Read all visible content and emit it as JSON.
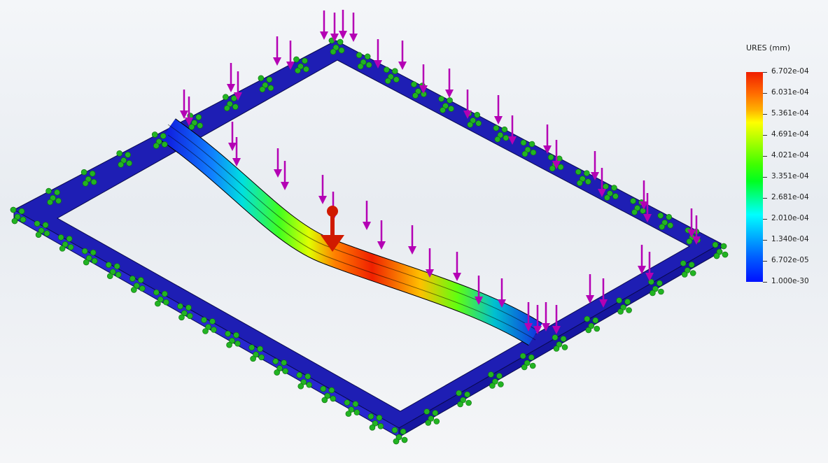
{
  "legend": {
    "title": "URES (mm)",
    "labels": [
      "6.702e-04",
      "6.031e-04",
      "5.361e-04",
      "4.691e-04",
      "4.021e-04",
      "3.351e-04",
      "2.681e-04",
      "2.010e-04",
      "1.340e-04",
      "6.702e-05",
      "1.000e-30"
    ],
    "colors": {
      "max": "#f01e00",
      "min": "#0010ff"
    }
  },
  "model": {
    "frame_color": "#1e1eb4",
    "load_arrow_color": "#b400b4",
    "fixture_color": "#22b422",
    "probe_color": "#d01a00"
  }
}
